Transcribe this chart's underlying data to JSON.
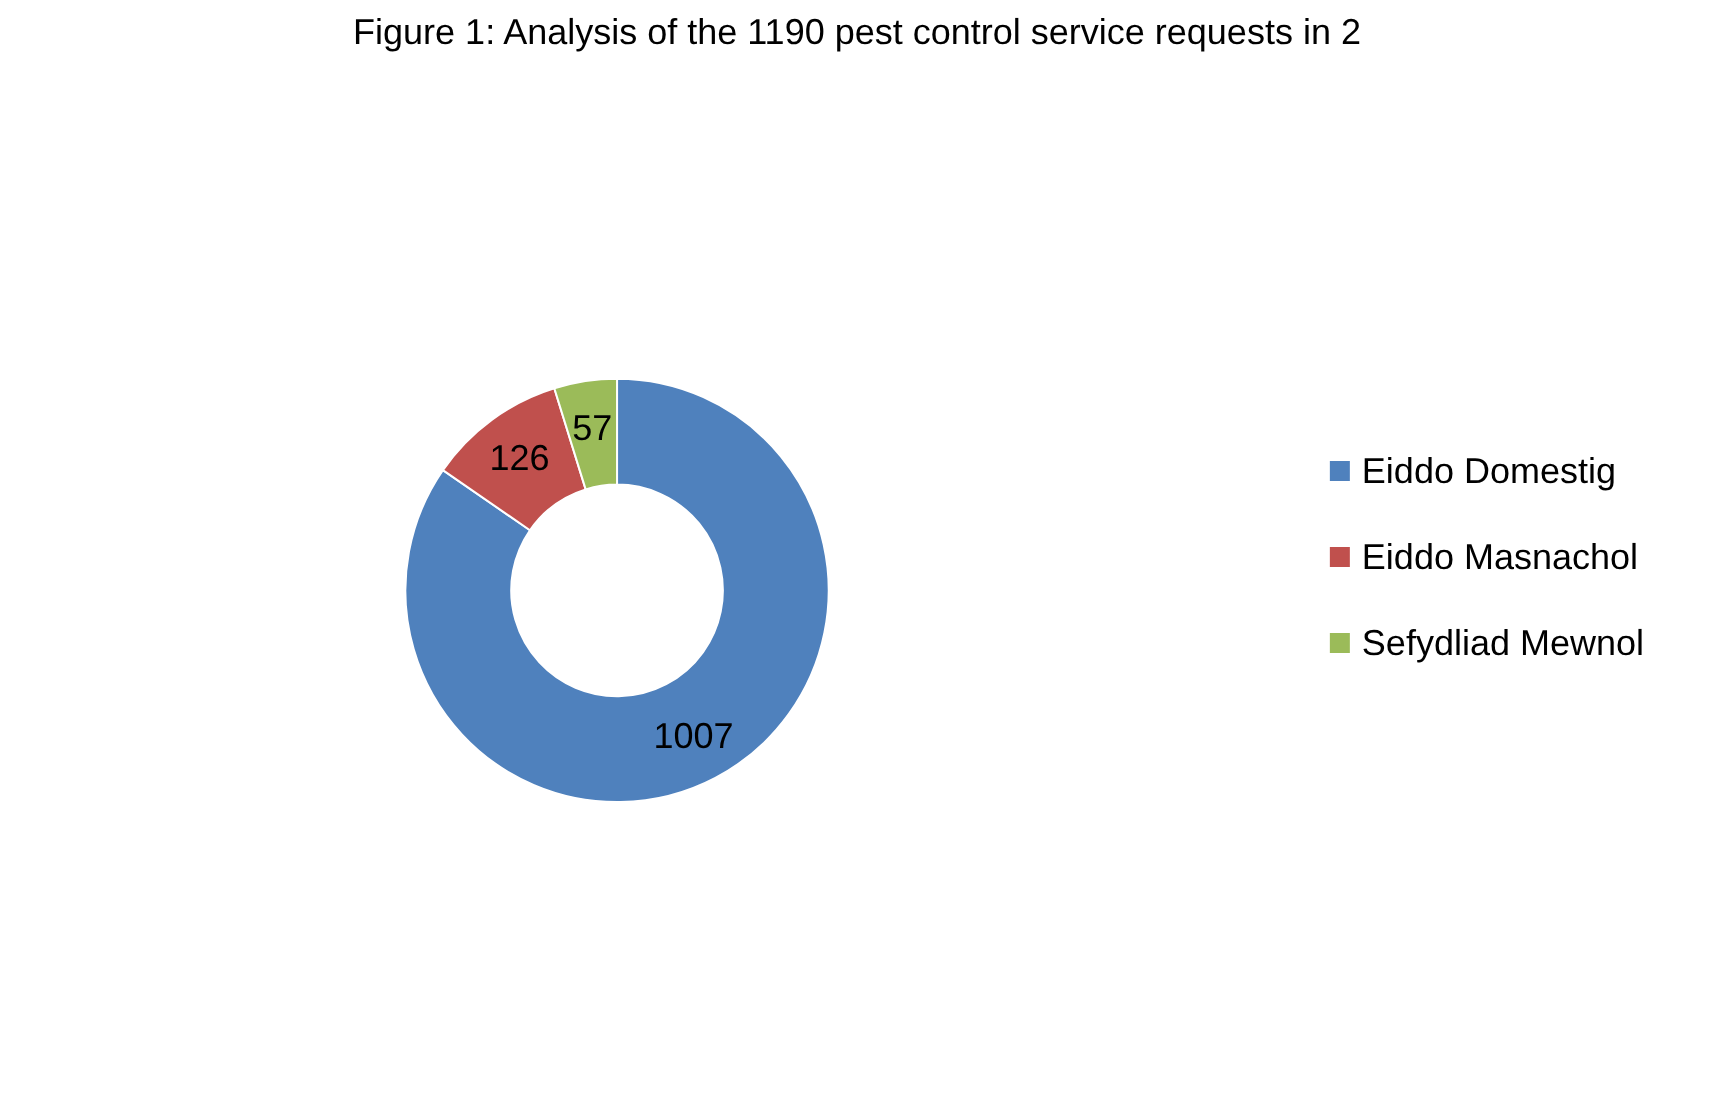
{
  "chart_data": {
    "type": "donut",
    "title": "Figure 1: Analysis of the 1190 pest control service requests in 2",
    "categories": [
      "Eiddo Domestig",
      "Eiddo Masnachol",
      "Sefydliad Mewnol"
    ],
    "values": [
      1007,
      126,
      57
    ],
    "colors": [
      "#4f81bd",
      "#c0504d",
      "#9bbb59"
    ],
    "data_labels": true,
    "legend": "right"
  }
}
